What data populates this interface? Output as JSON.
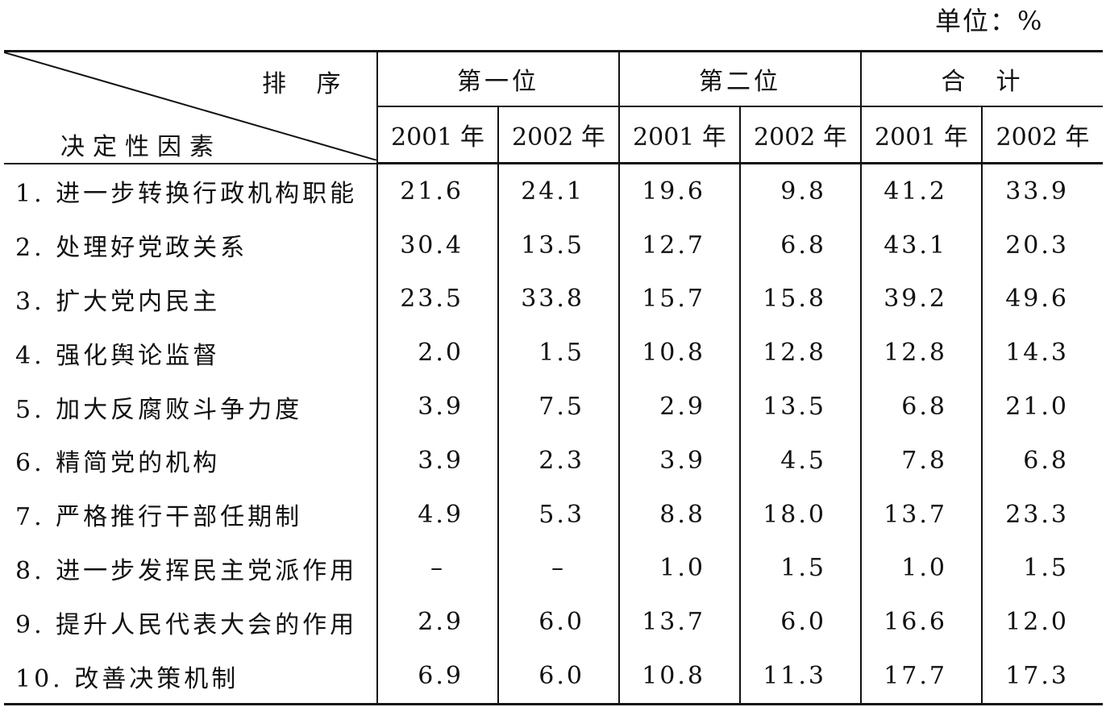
{
  "unit_label": "单位：%",
  "header": {
    "corner_top": "排 序",
    "corner_bottom": "决定性因素",
    "groups": [
      "第一位",
      "第二位",
      "合　计"
    ],
    "years": [
      "2001 年",
      "2002 年",
      "2001 年",
      "2002 年",
      "2001 年",
      "2002 年"
    ]
  },
  "rows": [
    {
      "label": "1. 进一步转换行政机构职能",
      "values": [
        "21.6",
        "24.1",
        "19.6",
        "9.8",
        "41.2",
        "33.9"
      ]
    },
    {
      "label": "2. 处理好党政关系",
      "values": [
        "30.4",
        "13.5",
        "12.7",
        "6.8",
        "43.1",
        "20.3"
      ]
    },
    {
      "label": "3. 扩大党内民主",
      "values": [
        "23.5",
        "33.8",
        "15.7",
        "15.8",
        "39.2",
        "49.6"
      ]
    },
    {
      "label": "4. 强化舆论监督",
      "values": [
        "2.0",
        "1.5",
        "10.8",
        "12.8",
        "12.8",
        "14.3"
      ]
    },
    {
      "label": "5. 加大反腐败斗争力度",
      "values": [
        "3.9",
        "7.5",
        "2.9",
        "13.5",
        "6.8",
        "21.0"
      ]
    },
    {
      "label": "6. 精简党的机构",
      "values": [
        "3.9",
        "2.3",
        "3.9",
        "4.5",
        "7.8",
        "6.8"
      ]
    },
    {
      "label": "7. 严格推行干部任期制",
      "values": [
        "4.9",
        "5.3",
        "8.8",
        "18.0",
        "13.7",
        "23.3"
      ]
    },
    {
      "label": "8. 进一步发挥民主党派作用",
      "values": [
        "–",
        "–",
        "1.0",
        "1.5",
        "1.0",
        "1.5"
      ]
    },
    {
      "label": "9. 提升人民代表大会的作用",
      "values": [
        "2.9",
        "6.0",
        "13.7",
        "6.0",
        "16.6",
        "12.0"
      ]
    },
    {
      "label": "10. 改善决策机制",
      "values": [
        "6.9",
        "6.0",
        "10.8",
        "11.3",
        "17.7",
        "17.3"
      ]
    }
  ]
}
